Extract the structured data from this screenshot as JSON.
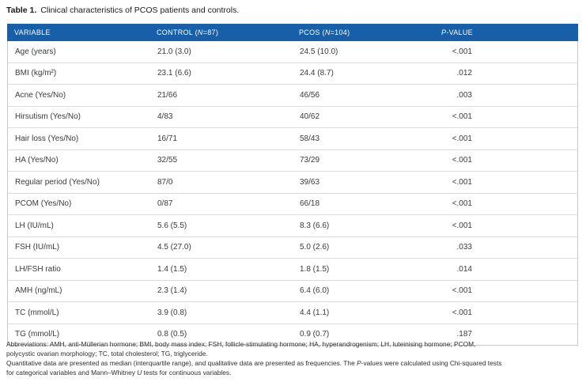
{
  "colors": {
    "header_bg": "#175fa9",
    "header_text": "#ffffff",
    "row_border": "#dcdcdc",
    "outer_border": "#c9c9c9",
    "body_text": "#3a3a3a"
  },
  "title": {
    "label": "Table 1.",
    "text": "Clinical characteristics of PCOS patients and controls."
  },
  "table": {
    "header": {
      "variable": "VARIABLE",
      "control": {
        "pre": "CONTROL (",
        "n": "N",
        "post": "=87)"
      },
      "pcos": {
        "pre": "PCOS (",
        "n": "N",
        "post": "=104)"
      },
      "pvalue": {
        "p": "P",
        "post": "-VALUE"
      }
    },
    "rows": [
      {
        "variable": "Age (years)",
        "control": "21.0 (3.0)",
        "pcos": "24.5 (10.0)",
        "p": "<.001"
      },
      {
        "variable": "BMI (kg/m²)",
        "control": "23.1 (6.6)",
        "pcos": "24.4 (8.7)",
        "p": ".012"
      },
      {
        "variable": "Acne (Yes/No)",
        "control": "21/66",
        "pcos": "46/56",
        "p": ".003"
      },
      {
        "variable": "Hirsutism (Yes/No)",
        "control": "4/83",
        "pcos": "40/62",
        "p": "<.001"
      },
      {
        "variable": "Hair loss (Yes/No)",
        "control": "16/71",
        "pcos": "58/43",
        "p": "<.001"
      },
      {
        "variable": "HA (Yes/No)",
        "control": "32/55",
        "pcos": "73/29",
        "p": "<.001"
      },
      {
        "variable": "Regular period (Yes/No)",
        "control": "87/0",
        "pcos": "39/63",
        "p": "<.001"
      },
      {
        "variable": "PCOM (Yes/No)",
        "control": "0/87",
        "pcos": "66/18",
        "p": "<.001"
      },
      {
        "variable": "LH (IU/mL)",
        "control": "5.6 (5.5)",
        "pcos": "8.3 (6.6)",
        "p": "<.001"
      },
      {
        "variable": "FSH (IU/mL)",
        "control": "4.5 (27.0)",
        "pcos": "5.0 (2.6)",
        "p": ".033"
      },
      {
        "variable": "LH/FSH ratio",
        "control": "1.4 (1.5)",
        "pcos": "1.8 (1.5)",
        "p": ".014"
      },
      {
        "variable": "AMH (ng/mL)",
        "control": "2.3 (1.4)",
        "pcos": "6.4 (6.0)",
        "p": "<.001"
      },
      {
        "variable": "TC (mmol/L)",
        "control": "3.9 (0.8)",
        "pcos": "4.4 (1.1)",
        "p": "<.001"
      },
      {
        "variable": "TG (mmol/L)",
        "control": "0.8 (0.5)",
        "pcos": "0.9 (0.7)",
        "p": ".187"
      }
    ]
  },
  "footnotes": {
    "line1": "Abbreviations: AMH, anti-Müllerian hormone; BMI, body mass index; FSH, follicle-stimulating hormone; HA, hyperandrogenism; LH, luteinising hormone; PCOM,",
    "line2": "polycystic ovarian morphology; TC, total cholesterol; TG, triglyceride.",
    "line3": {
      "pre": "Quantitative data are presented as median (interquartile range), and qualitative data are presented as frequencies. The ",
      "it": "P",
      "post": "-values were calculated using Chi-squared tests"
    },
    "line4": {
      "pre": "for categorical variables and Mann–Whitney ",
      "it": "U",
      "post": " tests for continuous variables."
    }
  }
}
